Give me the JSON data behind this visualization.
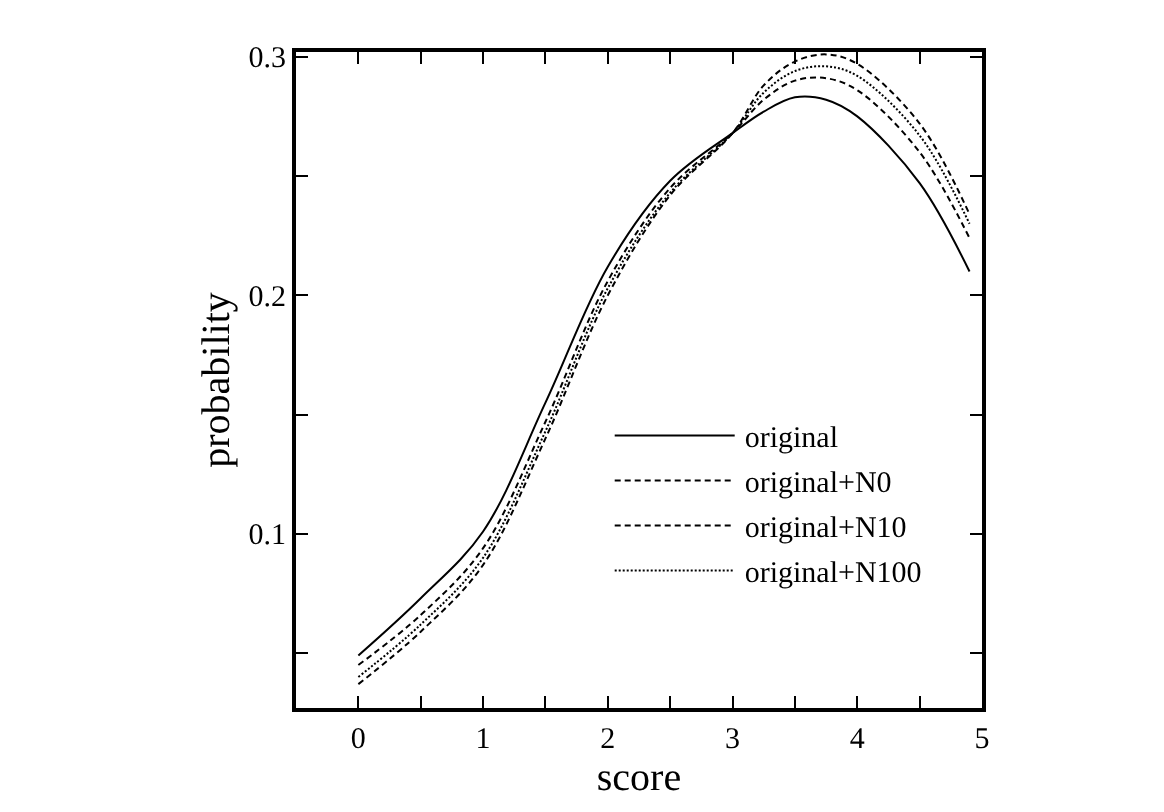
{
  "chart_data": {
    "type": "line",
    "xlabel": "score",
    "ylabel": "probability",
    "x": [
      0,
      0.5,
      1,
      1.5,
      2,
      2.5,
      3,
      3.25,
      3.5,
      3.75,
      4,
      4.5,
      4.9
    ],
    "series": [
      {
        "name": "original",
        "color": "#000000",
        "line_style": "solid",
        "values": [
          0.049,
          0.073,
          0.101,
          0.155,
          0.212,
          0.248,
          0.268,
          0.277,
          0.283,
          0.282,
          0.275,
          0.247,
          0.21
        ]
      },
      {
        "name": "original+N0",
        "color": "#000000",
        "line_style": "dashed",
        "values": [
          0.045,
          0.066,
          0.094,
          0.147,
          0.206,
          0.245,
          0.268,
          0.282,
          0.29,
          0.291,
          0.286,
          0.26,
          0.224
        ]
      },
      {
        "name": "original+N10",
        "color": "#000000",
        "line_style": "dashed",
        "values": [
          0.037,
          0.059,
          0.087,
          0.14,
          0.2,
          0.242,
          0.268,
          0.288,
          0.298,
          0.301,
          0.297,
          0.272,
          0.234
        ]
      },
      {
        "name": "original+N100",
        "color": "#000000",
        "line_style": "dotted",
        "values": [
          0.04,
          0.062,
          0.09,
          0.143,
          0.203,
          0.243,
          0.268,
          0.285,
          0.294,
          0.296,
          0.292,
          0.267,
          0.23
        ]
      }
    ],
    "xlim": [
      -0.5,
      5
    ],
    "xticks": [
      0,
      {
        "value": 0.5,
        "label": null
      },
      1,
      {
        "value": 1.5,
        "label": null
      },
      2,
      {
        "value": 2.5,
        "label": null
      },
      3,
      {
        "value": 3.5,
        "label": null
      },
      4,
      {
        "value": 4.5,
        "label": null
      },
      5
    ],
    "ylim": [
      0.027,
      0.302
    ],
    "yticks": [
      {
        "value": 0.05,
        "label": null
      },
      0.1,
      {
        "value": 0.15,
        "label": null
      },
      0.2,
      {
        "value": 0.25,
        "label": null
      },
      0.3
    ],
    "legend": "bottom right",
    "marker": "none"
  }
}
